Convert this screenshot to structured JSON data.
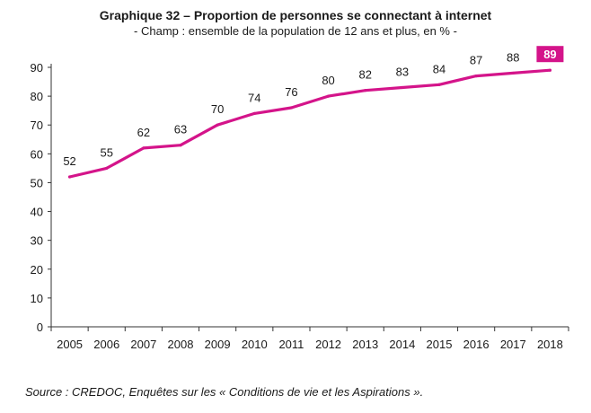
{
  "header": {
    "title": "Graphique 32 – Proportion de personnes se connectant à internet",
    "subtitle": "- Champ : ensemble de la population de 12 ans et plus, en % -"
  },
  "footer": {
    "source": "Source : CREDOC, Enquêtes sur les « Conditions de vie et les Aspirations »."
  },
  "chart_data": {
    "type": "line",
    "title": "Graphique 32 – Proportion de personnes se connectant à internet",
    "subtitle": "- Champ : ensemble de la population de 12 ans et plus, en % -",
    "xlabel": "",
    "ylabel": "",
    "x": [
      "2005",
      "2006",
      "2007",
      "2008",
      "2009",
      "2010",
      "2011",
      "2012",
      "2013",
      "2014",
      "2015",
      "2016",
      "2017",
      "2018"
    ],
    "series": [
      {
        "values": [
          52,
          55,
          62,
          63,
          70,
          74,
          76,
          80,
          82,
          83,
          84,
          87,
          88,
          89
        ]
      }
    ],
    "ylim": [
      0,
      90
    ],
    "yticks": [
      0,
      10,
      20,
      30,
      40,
      50,
      60,
      70,
      80,
      90
    ],
    "grid": false,
    "highlight_last": true,
    "colors": {
      "line": "#d4148a",
      "axis": "#333333",
      "highlight_bg": "#d4148a",
      "highlight_text": "#ffffff"
    }
  }
}
